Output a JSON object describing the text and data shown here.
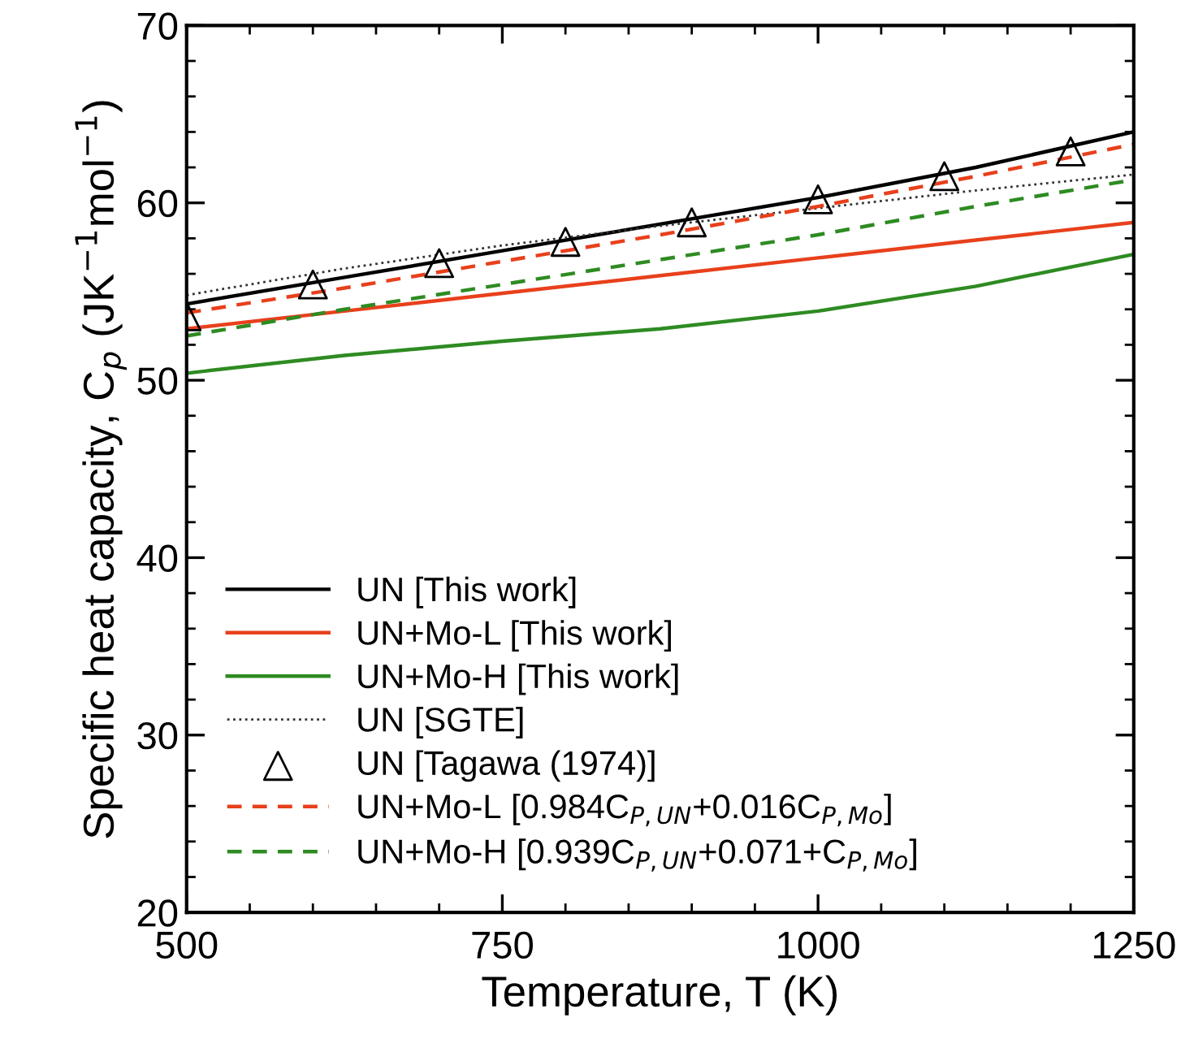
{
  "chart_data": {
    "type": "line",
    "xlabel": "Temperature, T (K)",
    "ylabel": "Specific heat capacity, C$_{p}$ (JK$^{−1}$mol$^{−1}$)",
    "xlim": [
      500,
      1250
    ],
    "ylim": [
      20,
      70
    ],
    "xticks": [
      500,
      {
        "value": 550,
        "label": null
      },
      {
        "value": 600,
        "label": null
      },
      {
        "value": 650,
        "label": null
      },
      {
        "value": 700,
        "label": null
      },
      750,
      {
        "value": 800,
        "label": null
      },
      {
        "value": 850,
        "label": null
      },
      {
        "value": 900,
        "label": null
      },
      {
        "value": 950,
        "label": null
      },
      1000,
      {
        "value": 1050,
        "label": null
      },
      {
        "value": 1100,
        "label": null
      },
      {
        "value": 1150,
        "label": null
      },
      {
        "value": 1200,
        "label": null
      },
      1250
    ],
    "yticks": [
      20,
      {
        "value": 22,
        "label": null
      },
      {
        "value": 24,
        "label": null
      },
      {
        "value": 26,
        "label": null
      },
      {
        "value": 28,
        "label": null
      },
      30,
      {
        "value": 32,
        "label": null
      },
      {
        "value": 34,
        "label": null
      },
      {
        "value": 36,
        "label": null
      },
      {
        "value": 38,
        "label": null
      },
      40,
      {
        "value": 42,
        "label": null
      },
      {
        "value": 44,
        "label": null
      },
      {
        "value": 46,
        "label": null
      },
      {
        "value": 48,
        "label": null
      },
      50,
      {
        "value": 52,
        "label": null
      },
      {
        "value": 54,
        "label": null
      },
      {
        "value": 56,
        "label": null
      },
      {
        "value": 58,
        "label": null
      },
      60,
      {
        "value": 62,
        "label": null
      },
      {
        "value": 64,
        "label": null
      },
      {
        "value": 66,
        "label": null
      },
      {
        "value": 68,
        "label": null
      },
      70
    ],
    "grid": false,
    "legend": "lower left",
    "x": [
      500,
      625,
      750,
      875,
      1000,
      1125,
      1250
    ],
    "series": [
      {
        "name": "UN [This work]",
        "color": "#000000",
        "line_style": "solid",
        "values": [
          54.3,
          55.8,
          57.3,
          58.8,
          60.3,
          62.0,
          64.0
        ]
      },
      {
        "name": "UN+Mo-L [This work]",
        "color": "#e8401c",
        "line_style": "solid",
        "values": [
          52.9,
          53.9,
          54.9,
          55.9,
          56.9,
          57.9,
          58.9
        ]
      },
      {
        "name": "UN+Mo-H [This work]",
        "color": "#2e8b22",
        "line_style": "solid",
        "values": [
          50.4,
          51.4,
          52.2,
          52.9,
          53.9,
          55.3,
          57.1
        ]
      },
      {
        "name": "UN [SGTE]",
        "color": "#333333",
        "line_style": "dotted",
        "values": [
          54.8,
          56.3,
          57.6,
          58.7,
          59.7,
          60.7,
          61.6
        ]
      },
      {
        "name": "UN [Tagawa (1974)]",
        "type": "scatter",
        "marker": "triangle",
        "color": "#000000",
        "x": [
          500,
          600,
          700,
          800,
          900,
          1000,
          1100,
          1200
        ],
        "values": [
          53.6,
          55.4,
          56.6,
          57.8,
          58.9,
          60.2,
          61.5,
          62.9
        ]
      },
      {
        "name": "UN+Mo-L [0.984C$_{P,UN}$+0.016C$_{P,Mo}$]",
        "color": "#e8401c",
        "line_style": "dashed",
        "values": [
          53.8,
          55.2,
          56.7,
          58.2,
          59.8,
          61.5,
          63.3
        ]
      },
      {
        "name": "UN+Mo-H [0.939C$_{P,UN}$+0.071+C$_{P,Mo}$]",
        "color": "#2e8b22",
        "line_style": "dashed",
        "values": [
          52.5,
          54.0,
          55.4,
          56.8,
          58.2,
          59.8,
          61.3
        ]
      }
    ]
  }
}
